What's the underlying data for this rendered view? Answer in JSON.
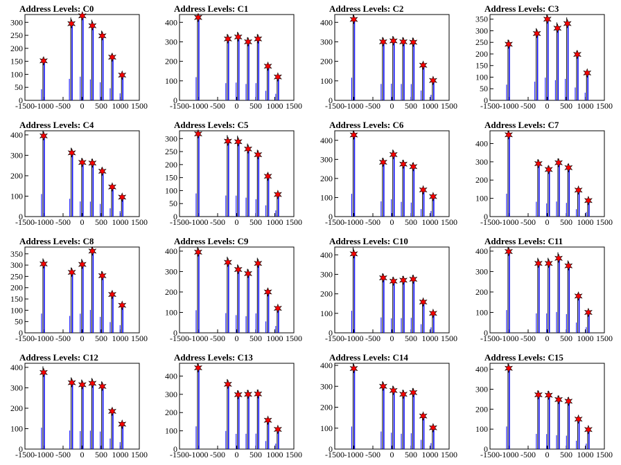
{
  "chart_data": [
    {
      "title": "Address Levels: C0",
      "ylim": [
        0,
        330
      ],
      "yticks": [
        0,
        50,
        100,
        150,
        200,
        250,
        300
      ],
      "type": "bar",
      "peaks": [
        {
          "x": -1010,
          "y": 152
        },
        {
          "x": -280,
          "y": 295
        },
        {
          "x": 5,
          "y": 325
        },
        {
          "x": 270,
          "y": 287
        },
        {
          "x": 530,
          "y": 248
        },
        {
          "x": 790,
          "y": 166
        },
        {
          "x": 1050,
          "y": 97
        }
      ]
    },
    {
      "title": "Address Levels: C1",
      "ylim": [
        0,
        440
      ],
      "yticks": [
        0,
        100,
        200,
        300,
        400
      ],
      "type": "bar",
      "peaks": [
        {
          "x": -1010,
          "y": 425
        },
        {
          "x": -230,
          "y": 315
        },
        {
          "x": 40,
          "y": 325
        },
        {
          "x": 300,
          "y": 300
        },
        {
          "x": 560,
          "y": 315
        },
        {
          "x": 820,
          "y": 175
        },
        {
          "x": 1080,
          "y": 120
        }
      ]
    },
    {
      "title": "Address Levels: C2",
      "ylim": [
        0,
        440
      ],
      "yticks": [
        0,
        100,
        200,
        300,
        400
      ],
      "type": "bar",
      "peaks": [
        {
          "x": -1000,
          "y": 415
        },
        {
          "x": -230,
          "y": 300
        },
        {
          "x": 40,
          "y": 305
        },
        {
          "x": 300,
          "y": 300
        },
        {
          "x": 560,
          "y": 298
        },
        {
          "x": 820,
          "y": 180
        },
        {
          "x": 1080,
          "y": 102
        }
      ]
    },
    {
      "title": "Address Levels: C3",
      "ylim": [
        0,
        370
      ],
      "yticks": [
        0,
        50,
        100,
        150,
        200,
        250,
        300,
        350
      ],
      "type": "bar",
      "peaks": [
        {
          "x": -1010,
          "y": 242
        },
        {
          "x": -270,
          "y": 288
        },
        {
          "x": 5,
          "y": 350
        },
        {
          "x": 270,
          "y": 311
        },
        {
          "x": 530,
          "y": 331
        },
        {
          "x": 790,
          "y": 198
        },
        {
          "x": 1050,
          "y": 118
        }
      ]
    },
    {
      "title": "Address Levels: C4",
      "ylim": [
        0,
        420
      ],
      "yticks": [
        0,
        100,
        200,
        300,
        400
      ],
      "type": "bar",
      "peaks": [
        {
          "x": -1010,
          "y": 395
        },
        {
          "x": -270,
          "y": 312
        },
        {
          "x": 5,
          "y": 265
        },
        {
          "x": 270,
          "y": 262
        },
        {
          "x": 530,
          "y": 222
        },
        {
          "x": 790,
          "y": 145
        },
        {
          "x": 1050,
          "y": 95
        }
      ]
    },
    {
      "title": "Address Levels: C5",
      "ylim": [
        0,
        330
      ],
      "yticks": [
        0,
        50,
        100,
        150,
        200,
        250,
        300
      ],
      "type": "bar",
      "peaks": [
        {
          "x": -1010,
          "y": 318
        },
        {
          "x": -230,
          "y": 290
        },
        {
          "x": 40,
          "y": 288
        },
        {
          "x": 300,
          "y": 260
        },
        {
          "x": 560,
          "y": 238
        },
        {
          "x": 820,
          "y": 155
        },
        {
          "x": 1080,
          "y": 85
        }
      ]
    },
    {
      "title": "Address Levels: C6",
      "ylim": [
        0,
        450
      ],
      "yticks": [
        0,
        100,
        200,
        300,
        400
      ],
      "type": "bar",
      "peaks": [
        {
          "x": -1000,
          "y": 428
        },
        {
          "x": -230,
          "y": 285
        },
        {
          "x": 40,
          "y": 325
        },
        {
          "x": 300,
          "y": 275
        },
        {
          "x": 560,
          "y": 262
        },
        {
          "x": 820,
          "y": 140
        },
        {
          "x": 1080,
          "y": 105
        }
      ]
    },
    {
      "title": "Address Levels: C7",
      "ylim": [
        0,
        470
      ],
      "yticks": [
        0,
        100,
        200,
        300,
        400
      ],
      "type": "bar",
      "peaks": [
        {
          "x": -1010,
          "y": 448
        },
        {
          "x": -230,
          "y": 290
        },
        {
          "x": 40,
          "y": 258
        },
        {
          "x": 300,
          "y": 295
        },
        {
          "x": 560,
          "y": 268
        },
        {
          "x": 820,
          "y": 145
        },
        {
          "x": 1080,
          "y": 88
        }
      ]
    },
    {
      "title": "Address Levels: C8",
      "ylim": [
        0,
        380
      ],
      "yticks": [
        0,
        50,
        100,
        150,
        200,
        250,
        300,
        350
      ],
      "type": "bar",
      "peaks": [
        {
          "x": -1010,
          "y": 305
        },
        {
          "x": -270,
          "y": 268
        },
        {
          "x": 5,
          "y": 303
        },
        {
          "x": 270,
          "y": 362
        },
        {
          "x": 530,
          "y": 253
        },
        {
          "x": 790,
          "y": 170
        },
        {
          "x": 1050,
          "y": 122
        }
      ]
    },
    {
      "title": "Address Levels: C9",
      "ylim": [
        0,
        420
      ],
      "yticks": [
        0,
        100,
        200,
        300,
        400
      ],
      "type": "bar",
      "peaks": [
        {
          "x": -1010,
          "y": 395
        },
        {
          "x": -230,
          "y": 345
        },
        {
          "x": 40,
          "y": 310
        },
        {
          "x": 300,
          "y": 290
        },
        {
          "x": 560,
          "y": 340
        },
        {
          "x": 820,
          "y": 200
        },
        {
          "x": 1080,
          "y": 120
        }
      ]
    },
    {
      "title": "Address Levels: C10",
      "ylim": [
        0,
        440
      ],
      "yticks": [
        0,
        100,
        200,
        300,
        400
      ],
      "type": "bar",
      "peaks": [
        {
          "x": -1000,
          "y": 405
        },
        {
          "x": -230,
          "y": 282
        },
        {
          "x": 40,
          "y": 265
        },
        {
          "x": 300,
          "y": 270
        },
        {
          "x": 560,
          "y": 275
        },
        {
          "x": 820,
          "y": 158
        },
        {
          "x": 1080,
          "y": 100
        }
      ]
    },
    {
      "title": "Address Levels: C11",
      "ylim": [
        0,
        420
      ],
      "yticks": [
        0,
        100,
        200,
        300,
        400
      ],
      "type": "bar",
      "peaks": [
        {
          "x": -1010,
          "y": 398
        },
        {
          "x": -230,
          "y": 340
        },
        {
          "x": 40,
          "y": 340
        },
        {
          "x": 300,
          "y": 365
        },
        {
          "x": 560,
          "y": 328
        },
        {
          "x": 820,
          "y": 180
        },
        {
          "x": 1080,
          "y": 100
        }
      ]
    },
    {
      "title": "Address Levels: C12",
      "ylim": [
        0,
        420
      ],
      "yticks": [
        0,
        100,
        200,
        300,
        400
      ],
      "type": "bar",
      "peaks": [
        {
          "x": -1010,
          "y": 375
        },
        {
          "x": -270,
          "y": 325
        },
        {
          "x": 5,
          "y": 315
        },
        {
          "x": 270,
          "y": 322
        },
        {
          "x": 530,
          "y": 307
        },
        {
          "x": 790,
          "y": 185
        },
        {
          "x": 1050,
          "y": 122
        }
      ]
    },
    {
      "title": "Address Levels: C13",
      "ylim": [
        0,
        470
      ],
      "yticks": [
        0,
        100,
        200,
        300,
        400
      ],
      "type": "bar",
      "peaks": [
        {
          "x": -1010,
          "y": 445
        },
        {
          "x": -230,
          "y": 355
        },
        {
          "x": 40,
          "y": 298
        },
        {
          "x": 300,
          "y": 300
        },
        {
          "x": 560,
          "y": 302
        },
        {
          "x": 820,
          "y": 158
        },
        {
          "x": 1080,
          "y": 108
        }
      ]
    },
    {
      "title": "Address Levels: C14",
      "ylim": [
        0,
        410
      ],
      "yticks": [
        0,
        100,
        200,
        300,
        400
      ],
      "type": "bar",
      "peaks": [
        {
          "x": -1000,
          "y": 385
        },
        {
          "x": -230,
          "y": 300
        },
        {
          "x": 40,
          "y": 280
        },
        {
          "x": 300,
          "y": 262
        },
        {
          "x": 560,
          "y": 270
        },
        {
          "x": 820,
          "y": 158
        },
        {
          "x": 1080,
          "y": 102
        }
      ]
    },
    {
      "title": "Address Levels: C15",
      "ylim": [
        0,
        430
      ],
      "yticks": [
        0,
        100,
        200,
        300,
        400
      ],
      "type": "bar",
      "peaks": [
        {
          "x": -1010,
          "y": 405
        },
        {
          "x": -230,
          "y": 272
        },
        {
          "x": 40,
          "y": 270
        },
        {
          "x": 300,
          "y": 248
        },
        {
          "x": 560,
          "y": 240
        },
        {
          "x": 820,
          "y": 150
        },
        {
          "x": 1080,
          "y": 98
        }
      ]
    }
  ],
  "xlim": [
    -1500,
    1500
  ],
  "xticks": [
    -1500,
    -1000,
    -500,
    0,
    500,
    1000,
    1500
  ],
  "colors": {
    "bars": "#0000ff",
    "outline": "#000000",
    "marker": "#ff0000"
  },
  "marker_icon": "star-marker-icon"
}
